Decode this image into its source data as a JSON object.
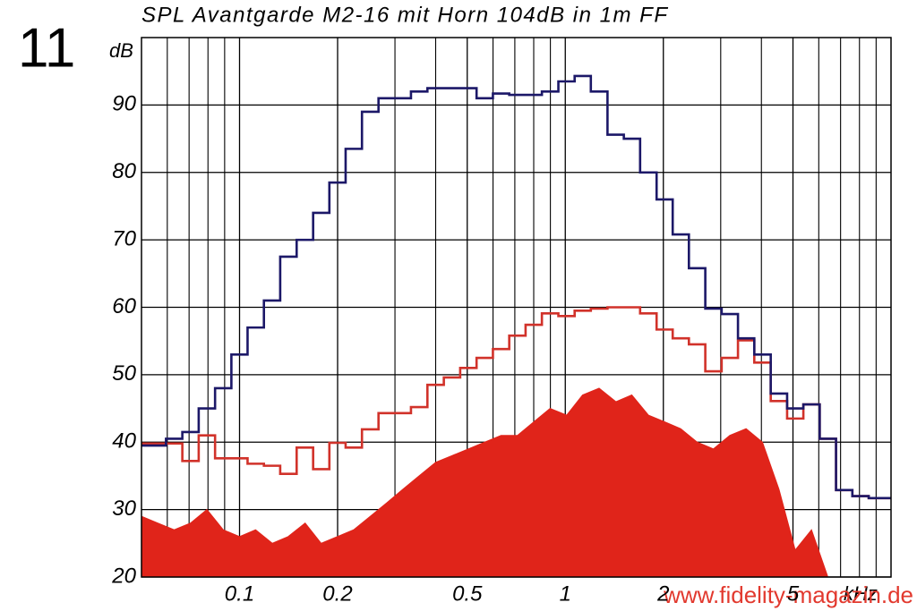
{
  "label_number": "11",
  "watermark": "www.fidelity-magazin.de",
  "chart_data": {
    "type": "line",
    "title": "SPL Avantgarde M2-16 mit Horn 104dB in 1m FF",
    "y_label": "dB",
    "x_label": "kHz",
    "xlog": true,
    "grid": true,
    "xlim": [
      0.05,
      10
    ],
    "ylim": [
      20,
      100
    ],
    "xticks": [
      0.1,
      0.2,
      0.5,
      1,
      2,
      5
    ],
    "xminor": [
      0.06,
      0.07,
      0.08,
      0.09,
      0.3,
      0.4,
      0.6,
      0.7,
      0.8,
      0.9,
      3,
      4,
      6,
      7,
      8,
      9
    ],
    "yticks": [
      20,
      30,
      40,
      50,
      60,
      70,
      80,
      90
    ],
    "x": [
      0.05,
      0.0561,
      0.063,
      0.0707,
      0.0794,
      0.0891,
      0.1,
      0.112,
      0.126,
      0.141,
      0.159,
      0.178,
      0.2,
      0.224,
      0.252,
      0.283,
      0.317,
      0.356,
      0.4,
      0.449,
      0.504,
      0.566,
      0.635,
      0.713,
      0.8,
      0.898,
      1.01,
      1.13,
      1.27,
      1.43,
      1.6,
      1.8,
      2.02,
      2.26,
      2.54,
      2.85,
      3.2,
      3.59,
      4.03,
      4.53,
      5.08,
      5.7,
      6.4,
      7.18,
      8.06,
      9.05,
      10.2
    ],
    "series": [
      {
        "color": "#e0241a",
        "style": "fill",
        "values": [
          29,
          28,
          27,
          28,
          30,
          27,
          26,
          27,
          25,
          26,
          28,
          25,
          26,
          27,
          29,
          31,
          33,
          35,
          37,
          38,
          39,
          40,
          41,
          41,
          43,
          45,
          44,
          47,
          48,
          46,
          47,
          44,
          43,
          42,
          40,
          39,
          41,
          42,
          40,
          33,
          24,
          27,
          20,
          20,
          20,
          20,
          20
        ]
      },
      {
        "color": "#d1322a",
        "style": "step",
        "values": [
          39.8,
          39.8,
          39.8,
          37.2,
          41,
          37.6,
          37.6,
          36.8,
          36.5,
          35.3,
          39.2,
          36,
          39.9,
          39.2,
          41.9,
          44.3,
          44.3,
          45.2,
          48.5,
          49.6,
          51,
          52.5,
          53.8,
          55.8,
          57.4,
          59.1,
          58.7,
          59.5,
          59.8,
          60,
          60,
          59.1,
          56.7,
          55.4,
          54.5,
          50.5,
          52.5,
          55.1,
          51.8,
          46.1,
          43.5,
          45.6,
          40.5,
          32.9,
          32,
          31.7,
          31.7
        ]
      },
      {
        "color": "#1c1868",
        "style": "step",
        "values": [
          39.5,
          39.5,
          40.5,
          41.5,
          45,
          48,
          53,
          57,
          61,
          67.5,
          70,
          74,
          78.5,
          83.5,
          89,
          91,
          91,
          92,
          92.5,
          92.5,
          92.5,
          91,
          91.7,
          91.5,
          91.5,
          92,
          93.5,
          94.3,
          92,
          85.6,
          85,
          80,
          76,
          70.8,
          65.8,
          59.8,
          59,
          55.4,
          53,
          47.2,
          45,
          45.6,
          40.5,
          32.9,
          32,
          31.7,
          31.7
        ]
      }
    ]
  }
}
